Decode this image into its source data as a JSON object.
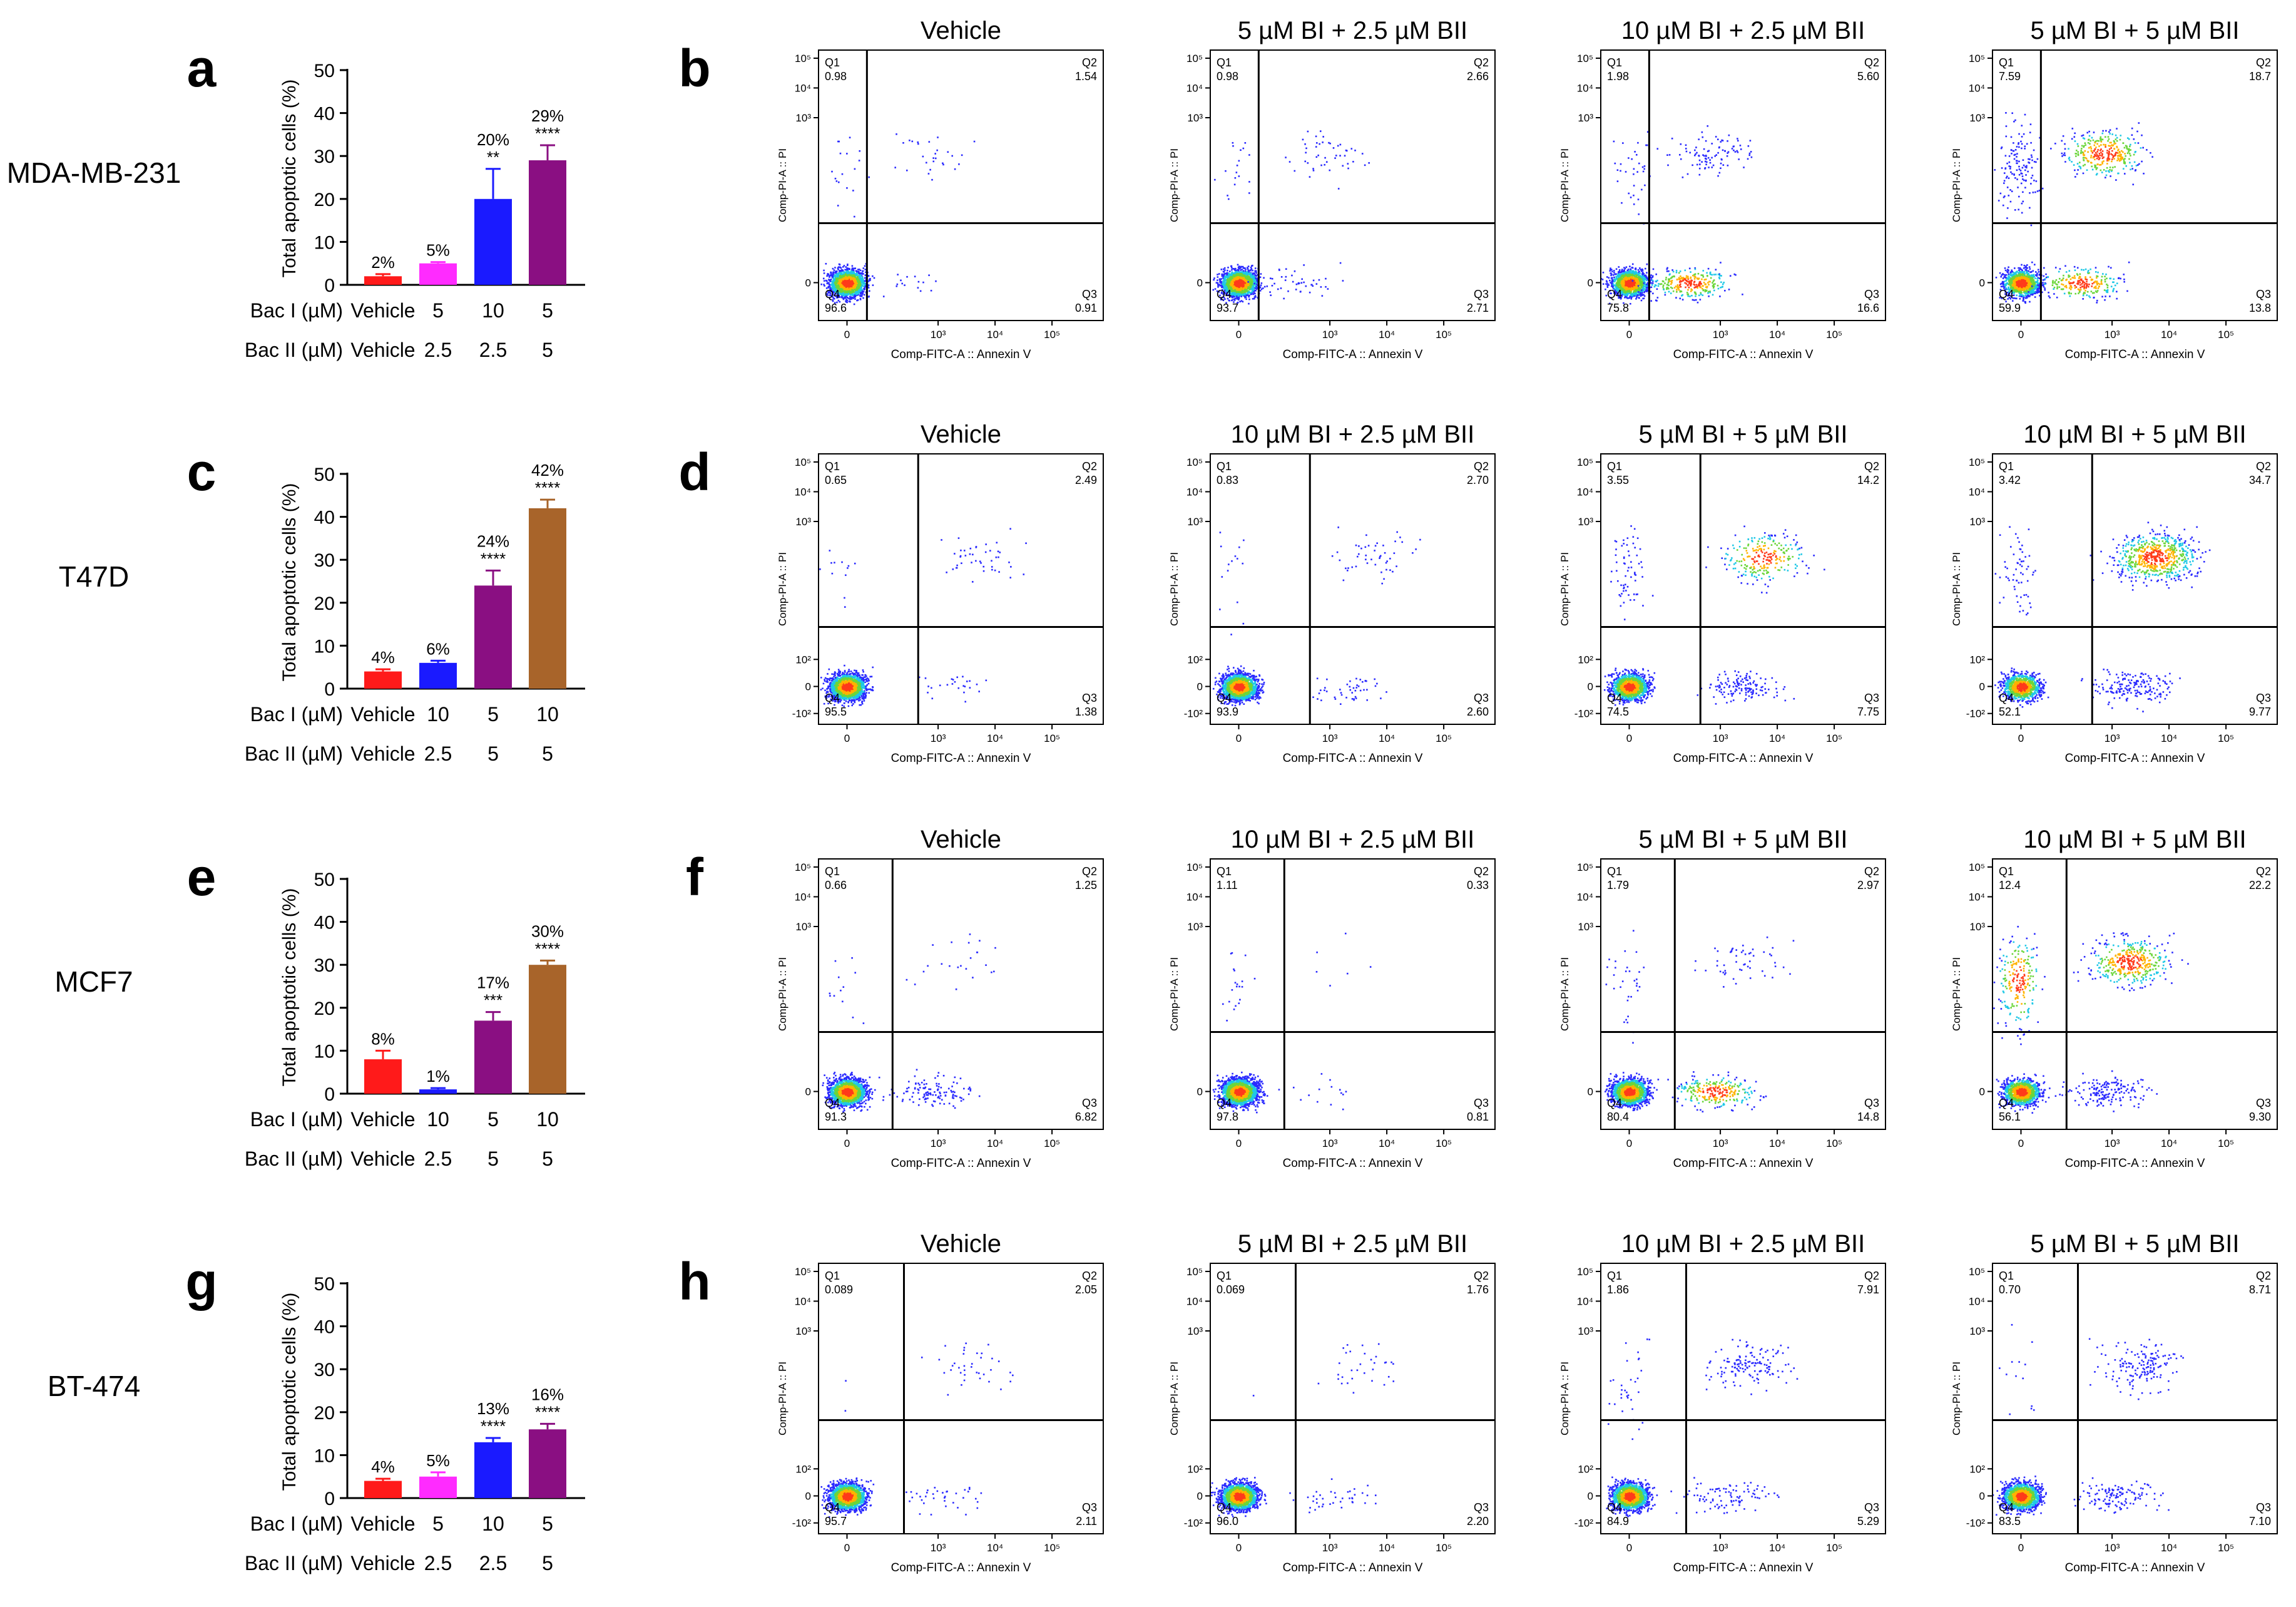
{
  "rows": [
    {
      "cell_line": "MDA-MB-231",
      "bar_letter": "a",
      "flow_letter": "b",
      "ylabel": "Total apoptotic cells (%)",
      "yticks": [
        "0",
        "10",
        "20",
        "30",
        "40",
        "50"
      ],
      "bac1_label": "Bac I (µM)",
      "bac2_label": "Bac II (µM)",
      "bac1": [
        "Vehicle",
        "5",
        "10",
        "5"
      ],
      "bac2": [
        "Vehicle",
        "2.5",
        "2.5",
        "5"
      ],
      "pct_labels": [
        "2%",
        "5%",
        "20%",
        "29%"
      ],
      "sig_labels": [
        "",
        "",
        "**",
        "****"
      ],
      "panel_titles": [
        "Vehicle",
        "5 µM BI + 2.5 µM BII",
        "10 µM BI + 2.5 µM BII",
        "5 µM BI + 5 µM BII"
      ],
      "quadrants": [
        {
          "q1": "0.98",
          "q2": "1.54",
          "q3": "0.91",
          "q4": "96.6"
        },
        {
          "q1": "0.98",
          "q2": "2.66",
          "q3": "2.71",
          "q4": "93.7"
        },
        {
          "q1": "1.98",
          "q2": "5.60",
          "q3": "16.6",
          "q4": "75.8"
        },
        {
          "q1": "7.59",
          "q2": "18.7",
          "q3": "13.8",
          "q4": "59.9"
        }
      ]
    },
    {
      "cell_line": "T47D",
      "bar_letter": "c",
      "flow_letter": "d",
      "ylabel": "Total apoptotic cells (%)",
      "yticks": [
        "0",
        "10",
        "20",
        "30",
        "40",
        "50"
      ],
      "bac1_label": "Bac I (µM)",
      "bac2_label": "Bac II (µM)",
      "bac1": [
        "Vehicle",
        "10",
        "5",
        "10"
      ],
      "bac2": [
        "Vehicle",
        "2.5",
        "5",
        "5"
      ],
      "pct_labels": [
        "4%",
        "6%",
        "24%",
        "42%"
      ],
      "sig_labels": [
        "",
        "",
        "****",
        "****"
      ],
      "panel_titles": [
        "Vehicle",
        "10 µM BI + 2.5 µM BII",
        "5 µM BI + 5 µM BII",
        "10 µM BI + 5 µM BII"
      ],
      "quadrants": [
        {
          "q1": "0.65",
          "q2": "2.49",
          "q3": "1.38",
          "q4": "95.5"
        },
        {
          "q1": "0.83",
          "q2": "2.70",
          "q3": "2.60",
          "q4": "93.9"
        },
        {
          "q1": "3.55",
          "q2": "14.2",
          "q3": "7.75",
          "q4": "74.5"
        },
        {
          "q1": "3.42",
          "q2": "34.7",
          "q3": "9.77",
          "q4": "52.1"
        }
      ]
    },
    {
      "cell_line": "MCF7",
      "bar_letter": "e",
      "flow_letter": "f",
      "ylabel": "Total apoptotic cells (%)",
      "yticks": [
        "0",
        "10",
        "20",
        "30",
        "40",
        "50"
      ],
      "bac1_label": "Bac I (µM)",
      "bac2_label": "Bac II (µM)",
      "bac1": [
        "Vehicle",
        "10",
        "5",
        "10"
      ],
      "bac2": [
        "Vehicle",
        "2.5",
        "5",
        "5"
      ],
      "pct_labels": [
        "8%",
        "1%",
        "17%",
        "30%"
      ],
      "sig_labels": [
        "",
        "",
        "***",
        "****"
      ],
      "panel_titles": [
        "Vehicle",
        "10 µM BI + 2.5 µM BII",
        "5 µM BI + 5 µM BII",
        "10 µM BI + 5 µM BII"
      ],
      "quadrants": [
        {
          "q1": "0.66",
          "q2": "1.25",
          "q3": "6.82",
          "q4": "91.3"
        },
        {
          "q1": "1.11",
          "q2": "0.33",
          "q3": "0.81",
          "q4": "97.8"
        },
        {
          "q1": "1.79",
          "q2": "2.97",
          "q3": "14.8",
          "q4": "80.4"
        },
        {
          "q1": "12.4",
          "q2": "22.2",
          "q3": "9.30",
          "q4": "56.1"
        }
      ]
    },
    {
      "cell_line": "BT-474",
      "bar_letter": "g",
      "flow_letter": "h",
      "ylabel": "Total apoptotic cells (%)",
      "yticks": [
        "0",
        "10",
        "20",
        "30",
        "40",
        "50"
      ],
      "bac1_label": "Bac I (µM)",
      "bac2_label": "Bac II (µM)",
      "bac1": [
        "Vehicle",
        "5",
        "10",
        "5"
      ],
      "bac2": [
        "Vehicle",
        "2.5",
        "2.5",
        "5"
      ],
      "pct_labels": [
        "4%",
        "5%",
        "13%",
        "16%"
      ],
      "sig_labels": [
        "",
        "",
        "****",
        "****"
      ],
      "panel_titles": [
        "Vehicle",
        "5 µM BI + 2.5 µM BII",
        "10 µM BI + 2.5 µM BII",
        "5 µM BI + 5 µM BII"
      ],
      "quadrants": [
        {
          "q1": "0.089",
          "q2": "2.05",
          "q3": "2.11",
          "q4": "95.7"
        },
        {
          "q1": "0.069",
          "q2": "1.76",
          "q3": "2.20",
          "q4": "96.0"
        },
        {
          "q1": "1.86",
          "q2": "7.91",
          "q3": "5.29",
          "q4": "84.9"
        },
        {
          "q1": "0.70",
          "q2": "8.71",
          "q3": "7.10",
          "q4": "83.5"
        }
      ]
    }
  ],
  "flow_axes": {
    "xlabel": "Comp-FITC-A :: Annexin V",
    "ylabel": "Comp-PI-A :: PI",
    "x_ticks": [
      "0",
      "10³",
      "10⁴",
      "10⁵"
    ],
    "y_ticks_top": [
      "10⁵",
      "10⁴",
      "10³",
      "0"
    ],
    "y_ticks_low": [
      "10⁵",
      "10⁴",
      "10³",
      "10²",
      "0",
      "-10²"
    ]
  },
  "colors": {
    "red": "#ff1a1a",
    "magenta": "#ff2bff",
    "blue": "#1a1aff",
    "purple": "#8a0f82",
    "brown": "#a8642a"
  },
  "chart_data": [
    {
      "type": "bar",
      "title": "MDA-MB-231",
      "categories": [
        "Vehicle / Vehicle",
        "5 / 2.5",
        "10 / 2.5",
        "5 / 5"
      ],
      "values": [
        2,
        5,
        20,
        29
      ],
      "errors": [
        0.5,
        0.3,
        7,
        3.5
      ],
      "colors": [
        "red",
        "magenta",
        "blue",
        "purple"
      ],
      "ylabel": "Total apoptotic cells (%)",
      "ylim": [
        0,
        50
      ]
    },
    {
      "type": "bar",
      "title": "T47D",
      "categories": [
        "Vehicle / Vehicle",
        "10 / 2.5",
        "5 / 5",
        "10 / 5"
      ],
      "values": [
        4,
        6,
        24,
        42
      ],
      "errors": [
        0.5,
        0.5,
        3.5,
        2
      ],
      "colors": [
        "red",
        "blue",
        "purple",
        "brown"
      ],
      "ylabel": "Total apoptotic cells (%)",
      "ylim": [
        0,
        50
      ]
    },
    {
      "type": "bar",
      "title": "MCF7",
      "categories": [
        "Vehicle / Vehicle",
        "10 / 2.5",
        "5 / 5",
        "10 / 5"
      ],
      "values": [
        8,
        1,
        17,
        30
      ],
      "errors": [
        2,
        0.3,
        2,
        1
      ],
      "colors": [
        "red",
        "blue",
        "purple",
        "brown"
      ],
      "ylabel": "Total apoptotic cells (%)",
      "ylim": [
        0,
        50
      ]
    },
    {
      "type": "bar",
      "title": "BT-474",
      "categories": [
        "Vehicle / Vehicle",
        "5 / 2.5",
        "10 / 2.5",
        "5 / 5"
      ],
      "values": [
        4,
        5,
        13,
        16
      ],
      "errors": [
        0.5,
        1,
        1,
        1.3
      ],
      "colors": [
        "red",
        "magenta",
        "blue",
        "purple"
      ],
      "ylabel": "Total apoptotic cells (%)",
      "ylim": [
        0,
        50
      ]
    }
  ]
}
